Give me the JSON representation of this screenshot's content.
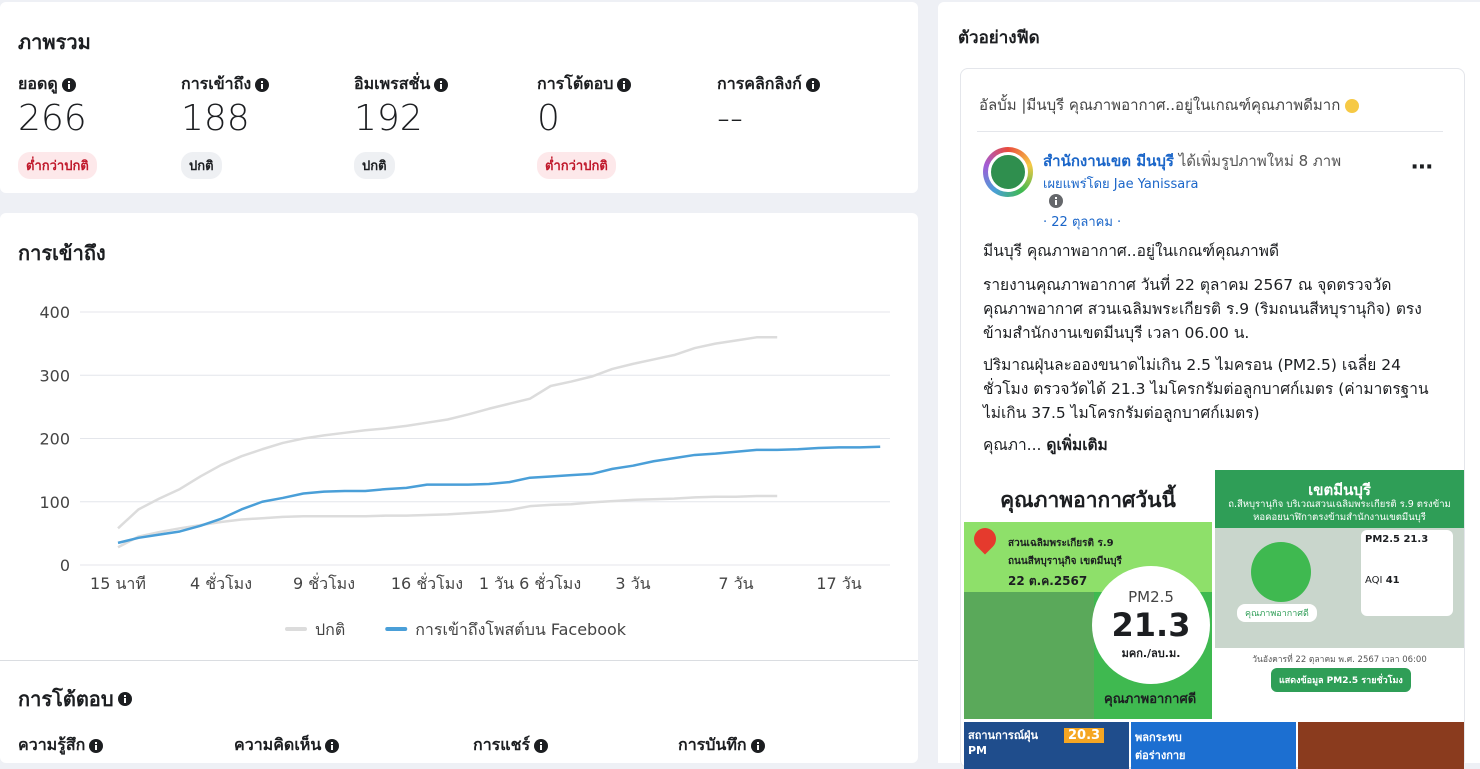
{
  "overview": {
    "title": "ภาพรวม",
    "metrics": [
      {
        "label": "ยอดดู",
        "value": 266,
        "status": "ต่ำกว่าปกติ",
        "badge_color": "#fde8ea",
        "badge_text_color": "#c0182b"
      },
      {
        "label": "การเข้าถึง",
        "value": 188,
        "status": "ปกติ",
        "badge_color": "#eef0f3",
        "badge_text_color": "#1c1e21"
      },
      {
        "label": "อิมเพรสชั่น",
        "value": 192,
        "status": "ปกติ",
        "badge_color": "#eef0f3",
        "badge_text_color": "#1c1e21"
      },
      {
        "label": "การโต้ตอบ",
        "value": 0,
        "status": "ต่ำกว่าปกติ",
        "badge_color": "#fde8ea",
        "badge_text_color": "#c0182b"
      },
      {
        "label": "การคลิกลิงก์",
        "value": "--"
      }
    ]
  },
  "reach": {
    "title": "การเข้าถึง",
    "chart_data": {
      "type": "line",
      "categories": [
        "15 นาที",
        null,
        null,
        null,
        null,
        "4 ชั่วโมง",
        null,
        null,
        null,
        null,
        "9 ชั่วโมง",
        null,
        null,
        null,
        null,
        "16 ชั่วโมง",
        null,
        null,
        null,
        null,
        "1 วัน 6 ชั่วโมง",
        null,
        null,
        null,
        null,
        "3 วัน",
        null,
        null,
        null,
        null,
        "7 วัน",
        null,
        null,
        null,
        null,
        "17 วัน",
        null,
        null
      ],
      "band": {
        "name": "ปกติ",
        "color": "#dcdcdc",
        "high": [
          58,
          88,
          105,
          120,
          140,
          158,
          172,
          183,
          193,
          200,
          205,
          209,
          213,
          216,
          220,
          225,
          230,
          238,
          247,
          255,
          263,
          283,
          290,
          298,
          310,
          318,
          325,
          332,
          343,
          350,
          355,
          360,
          360,
          null,
          null,
          null,
          null,
          null
        ],
        "low": [
          28,
          45,
          52,
          58,
          63,
          68,
          72,
          74,
          76,
          77,
          77,
          77,
          77,
          78,
          78,
          79,
          80,
          82,
          84,
          87,
          93,
          95,
          96,
          99,
          101,
          103,
          104,
          105,
          107,
          108,
          108,
          109,
          109,
          null,
          null,
          null,
          null,
          null
        ]
      },
      "series": [
        {
          "name": "การเข้าถึงโพสต์บน Facebook",
          "color": "#4a9fd8",
          "values": [
            35,
            43,
            48,
            53,
            62,
            73,
            88,
            100,
            106,
            113,
            116,
            117,
            117,
            120,
            122,
            127,
            127,
            127,
            128,
            131,
            138,
            140,
            142,
            144,
            152,
            157,
            164,
            169,
            174,
            176,
            179,
            182,
            182,
            183,
            185,
            186,
            186,
            187
          ]
        }
      ],
      "ylim": [
        0,
        400
      ],
      "yticks": [
        0,
        100,
        200,
        300,
        400
      ],
      "grid": true,
      "legend": "bottom"
    }
  },
  "interactions": {
    "title": "การโต้ตอบ",
    "metrics": [
      "ความรู้สึก",
      "ความคิดเห็น",
      "การแชร์",
      "การบันทึก"
    ]
  },
  "feed": {
    "title": "ตัวอย่างฟีด",
    "album": "อัลบั้ม |มีนบุรี คุณภาพอากาศ..อยู่ในเกณฑ์คุณภาพดีมาก",
    "page_name": "สำนักงานเขต มีนบุรี",
    "action": "ได้เพิ่มรูปภาพใหม่ 8 ภาพ",
    "shared_by": "เผยแพร่โดย Jae Yanissara",
    "date": "· 22 ตุลาคม ·",
    "paragraphs": [
      "มีนบุรี คุณภาพอากาศ..อยู่ในเกณฑ์คุณภาพดี",
      "รายงานคุณภาพอากาศ วันที่ 22 ตุลาคม 2567 ณ จุดตรวจวัดคุณภาพอากาศ สวนเฉลิมพระเกียรติ ร.9 (ริมถนนสีหบุรานุกิจ) ตรงข้ามสำนักงานเขตมีนบุรี เวลา 06.00 น.",
      "ปริมาณฝุ่นละอองขนาดไม่เกิน 2.5 ไมครอน (PM2.5) เฉลี่ย 24 ชั่วโมง ตรวจวัดได้ 21.3 ไมโครกรัมต่อลูกบาศก์เมตร (ค่ามาตรฐานไม่เกิน 37.5 ไมโครกรัมต่อลูกบาศก์เมตร)"
    ],
    "truncated": "คุณภา...",
    "see_more": "ดูเพิ่มเติม",
    "image1": {
      "heading": "คุณภาพอากาศวันนี้",
      "place": "สวนเฉลิมพระเกียรติ ร.9",
      "road": "ถนนสีหบุรานุกิจ เขตมีนบุรี",
      "date": "22 ต.ค.2567",
      "metric": "PM2.5",
      "value": "21.3",
      "unit": "มคก./ลบ.ม.",
      "quality": "คุณภาพอากาศดี"
    },
    "image2": {
      "heading": "เขตมีนบุรี",
      "location": "ถ.สีหบุรานุกิจ บริเวณสวนเฉลิมพระเกียรติ ร.9 ตรงข้ามหอคอยนาฬิกาตรงข้ามสำนักงานเขตมีนบุรี",
      "quality": "คุณภาพอากาศดี",
      "pm": "PM2.5 21.3",
      "aqi_label": "AQI",
      "aqi": "41",
      "date": "วันอังคารที่ 22 ตุลาคม พ.ศ. 2567 เวลา 06:00",
      "button": "แสดงข้อมูล PM2.5 รายชั่วโมง"
    },
    "thumbs": [
      "สถานการณ์ฝุ่น PM",
      "20.3",
      "พลกระทบต่อร่างกาย"
    ]
  }
}
